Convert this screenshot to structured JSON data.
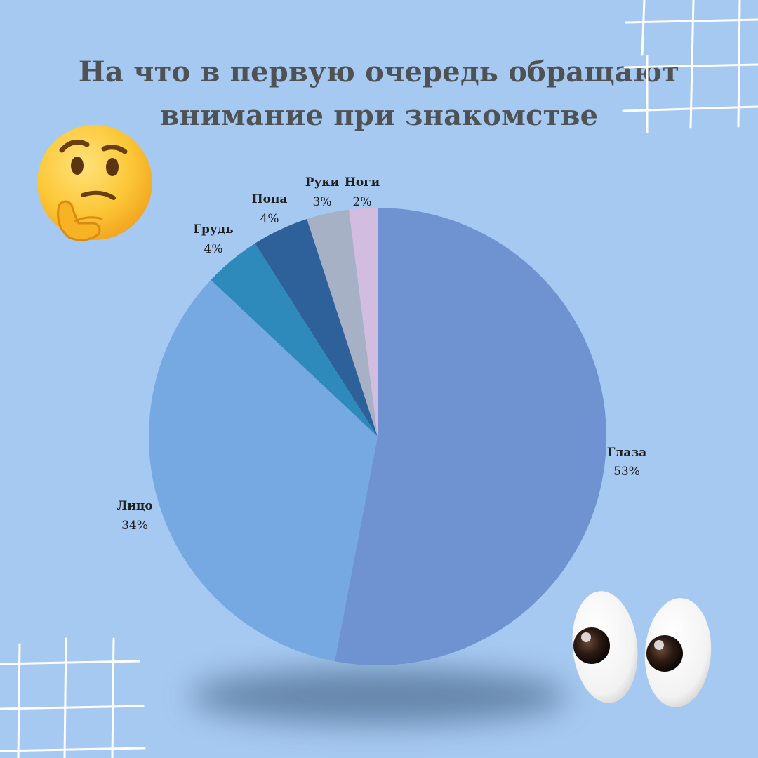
{
  "header": {
    "title_line1": "На что в первую очередь обращают",
    "title_line2": "внимание при знакомстве"
  },
  "colors": {
    "background": "#a6c9f1",
    "title_text": "#4f5255",
    "grid_lines": "#ffffff",
    "shadow": "#4f6f93"
  },
  "decorations": {
    "top_left_emoji": "thinking-face-icon",
    "bottom_right_emoji": "eyes-icon",
    "corner_grids": [
      "top-right-grid",
      "bottom-left-grid"
    ]
  },
  "chart_data": {
    "type": "pie",
    "title": "На что в первую очередь обращают внимание при знакомстве",
    "start": "12 o'clock",
    "direction": "clockwise",
    "slices": [
      {
        "label": "Глаза",
        "value": 53,
        "value_label": "53%",
        "color": "#6f93d0"
      },
      {
        "label": "Лицо",
        "value": 34,
        "value_label": "34%",
        "color": "#76a9e2"
      },
      {
        "label": "Грудь",
        "value": 4,
        "value_label": "4%",
        "color": "#2f8abc"
      },
      {
        "label": "Попа",
        "value": 4,
        "value_label": "4%",
        "color": "#2e619a"
      },
      {
        "label": "Руки",
        "value": 3,
        "value_label": "3%",
        "color": "#a7b1c6"
      },
      {
        "label": "Ноги",
        "value": 2,
        "value_label": "2%",
        "color": "#d2bde0"
      }
    ]
  }
}
